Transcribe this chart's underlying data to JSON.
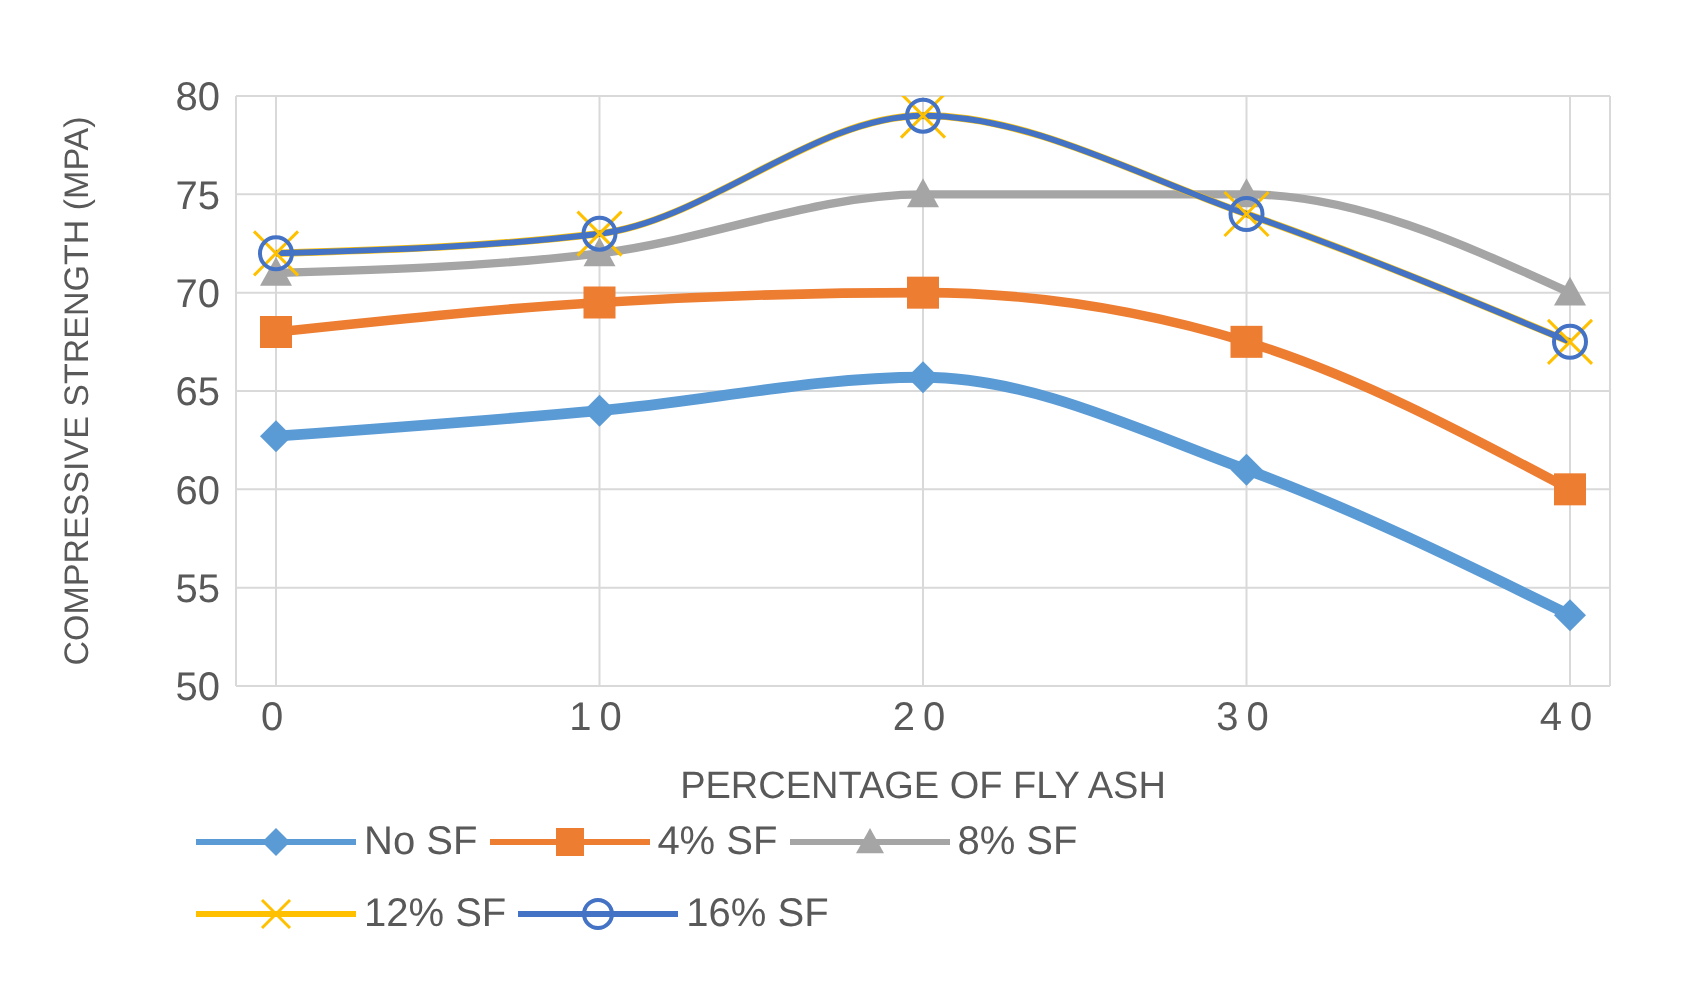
{
  "chart_data": {
    "type": "line",
    "xlabel": "PERCENTAGE OF FLY ASH",
    "ylabel": "COMPRESSIVE STRENGTH (MPA)",
    "categories": [
      "0",
      "10",
      "20",
      "30",
      "40"
    ],
    "ylim": [
      50,
      80
    ],
    "yticks": [
      50,
      55,
      60,
      65,
      70,
      75,
      80
    ],
    "grid": true,
    "legend": "bottom",
    "line_style": "solid",
    "series": [
      {
        "name": "No SF",
        "color": "#5b9bd5",
        "marker": "diamond",
        "values": [
          62.7,
          64,
          65.7,
          61,
          53.6
        ]
      },
      {
        "name": "4% SF",
        "color": "#ed7d31",
        "marker": "square",
        "values": [
          68,
          69.5,
          70,
          67.5,
          60
        ]
      },
      {
        "name": "8% SF",
        "color": "#a5a5a5",
        "marker": "triangle",
        "values": [
          71,
          72,
          75,
          75,
          70
        ]
      },
      {
        "name": "12% SF",
        "color": "#ffc000",
        "marker": "cross",
        "values": [
          72,
          73,
          79,
          74,
          67.5
        ]
      },
      {
        "name": "16% SF",
        "color": "#4472c4",
        "marker": "circle",
        "values": [
          72,
          73,
          79,
          74,
          67.5
        ]
      }
    ]
  }
}
